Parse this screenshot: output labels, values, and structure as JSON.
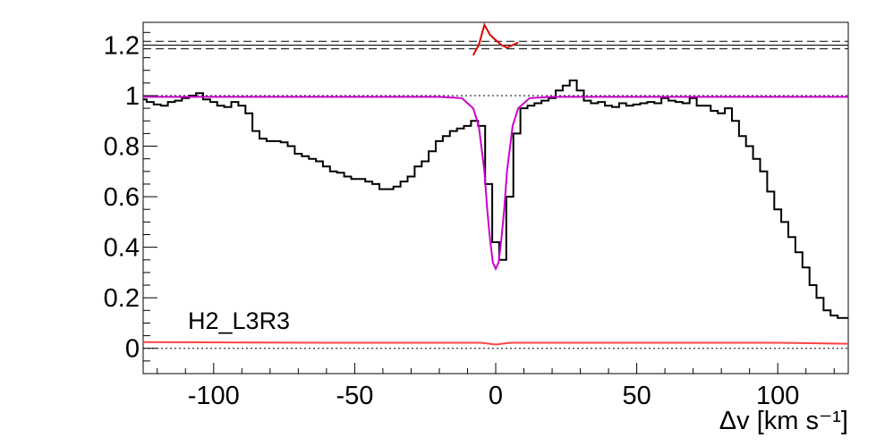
{
  "chart_data": {
    "type": "line",
    "annotation": "H2_L3R3",
    "xlabel": "Δv [km s⁻¹]",
    "ylabel": "",
    "xlim": [
      -125,
      125
    ],
    "ylim": [
      -0.1,
      1.29
    ],
    "x_ticks": [
      -100,
      -50,
      0,
      50,
      100
    ],
    "x_tick_labels": [
      "-100",
      "-50",
      "0",
      "50",
      "100"
    ],
    "y_ticks": [
      0,
      0.2,
      0.4,
      0.6,
      0.8,
      1,
      1.2
    ],
    "y_tick_labels": [
      "0",
      "0.2",
      "0.4",
      "0.6",
      "0.8",
      "1",
      "1.2"
    ],
    "grid": false,
    "colors": {
      "spectrum": "#000000",
      "model": "#cc00cc",
      "model_dashed": "#cc00cc",
      "error": "#ff4444",
      "residual": "#dd0000",
      "reference": "#000000"
    },
    "reference_lines": {
      "continuum": 1.0,
      "zero": 0.0,
      "residual_center": 1.2,
      "residual_band": [
        1.185,
        1.215
      ]
    },
    "series": [
      {
        "role": "spectrum",
        "style": "step",
        "x": [
          -125,
          -122.5,
          -120,
          -117.5,
          -115,
          -112.5,
          -110,
          -107.5,
          -105,
          -102.5,
          -100,
          -97.5,
          -95,
          -92.5,
          -90,
          -87.5,
          -85,
          -82.5,
          -80,
          -77.5,
          -75,
          -72.5,
          -70,
          -67.5,
          -65,
          -62.5,
          -60,
          -57.5,
          -55,
          -52.5,
          -50,
          -47.5,
          -45,
          -42.5,
          -40,
          -37.5,
          -35,
          -32.5,
          -30,
          -27.5,
          -25,
          -22.5,
          -20,
          -17.5,
          -15,
          -12.5,
          -10,
          -7.5,
          -5,
          -2.5,
          0,
          2.5,
          5,
          7.5,
          10,
          12.5,
          15,
          17.5,
          20,
          22.5,
          25,
          27.5,
          30,
          32.5,
          35,
          37.5,
          40,
          42.5,
          45,
          47.5,
          50,
          52.5,
          55,
          57.5,
          60,
          62.5,
          65,
          67.5,
          70,
          72.5,
          75,
          77.5,
          80,
          82.5,
          85,
          87.5,
          90,
          92.5,
          95,
          97.5,
          100,
          102.5,
          105,
          107.5,
          110,
          112.5,
          115,
          117.5,
          120,
          122.5,
          125
        ],
        "values": [
          0.985,
          0.975,
          0.965,
          0.96,
          0.975,
          0.98,
          0.99,
          1.0,
          1.01,
          0.985,
          0.975,
          0.96,
          0.955,
          0.975,
          0.96,
          0.93,
          0.86,
          0.83,
          0.82,
          0.82,
          0.815,
          0.8,
          0.77,
          0.76,
          0.75,
          0.74,
          0.72,
          0.7,
          0.695,
          0.68,
          0.67,
          0.67,
          0.66,
          0.65,
          0.63,
          0.63,
          0.64,
          0.66,
          0.68,
          0.72,
          0.74,
          0.78,
          0.82,
          0.84,
          0.86,
          0.87,
          0.88,
          0.9,
          0.88,
          0.65,
          0.42,
          0.35,
          0.6,
          0.85,
          0.95,
          0.96,
          0.97,
          0.98,
          0.99,
          1.02,
          1.04,
          1.06,
          1.02,
          0.98,
          0.97,
          0.975,
          0.96,
          0.955,
          0.97,
          0.96,
          0.965,
          0.97,
          0.975,
          0.97,
          0.99,
          0.98,
          0.975,
          0.97,
          0.99,
          0.96,
          0.96,
          0.94,
          0.93,
          0.95,
          0.9,
          0.84,
          0.8,
          0.75,
          0.7,
          0.62,
          0.55,
          0.5,
          0.44,
          0.38,
          0.32,
          0.25,
          0.2,
          0.15,
          0.13,
          0.12,
          0.12
        ]
      },
      {
        "role": "model",
        "style": "line",
        "x": [
          -125,
          -20,
          -12,
          -8,
          -6,
          -4,
          -3,
          -2,
          -1,
          0,
          1,
          2,
          3,
          4,
          6,
          8,
          12,
          20,
          125
        ],
        "values": [
          0.995,
          0.995,
          0.99,
          0.95,
          0.88,
          0.7,
          0.55,
          0.43,
          0.34,
          0.315,
          0.34,
          0.43,
          0.55,
          0.7,
          0.88,
          0.95,
          0.99,
          0.995,
          0.995
        ]
      },
      {
        "role": "error",
        "style": "line",
        "x": [
          -125,
          -60,
          -20,
          -5,
          0,
          5,
          20,
          60,
          100,
          125
        ],
        "values": [
          0.025,
          0.022,
          0.022,
          0.022,
          0.015,
          0.022,
          0.022,
          0.022,
          0.022,
          0.018
        ]
      },
      {
        "role": "residual",
        "style": "line",
        "x": [
          -8,
          -6,
          -4,
          -2,
          0,
          2,
          4,
          6,
          8
        ],
        "values": [
          1.16,
          1.2,
          1.28,
          1.24,
          1.22,
          1.2,
          1.19,
          1.2,
          1.21
        ]
      }
    ]
  }
}
